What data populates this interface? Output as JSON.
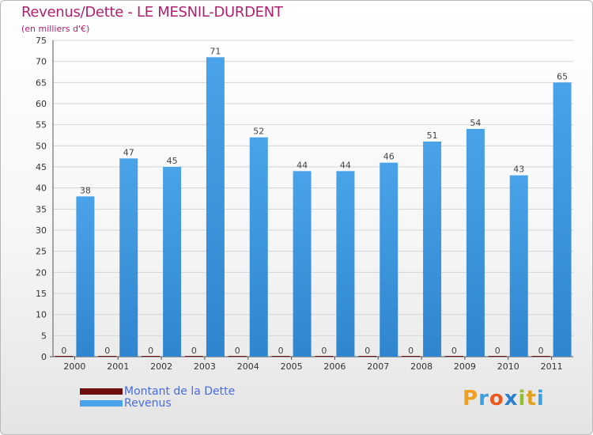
{
  "chart_data": {
    "type": "bar",
    "title": "Revenus/Dette - LE MESNIL-DURDENT",
    "subtitle": "(en milliers d'€)",
    "categories": [
      "2000",
      "2001",
      "2002",
      "2003",
      "2004",
      "2005",
      "2006",
      "2007",
      "2008",
      "2009",
      "2010",
      "2011"
    ],
    "series": [
      {
        "name": "Montant de la Dette",
        "color": "#6b0f0f",
        "values": [
          0,
          0,
          0,
          0,
          0,
          0,
          0,
          0,
          0,
          0,
          0,
          0
        ]
      },
      {
        "name": "Revenus",
        "color": "#4aa3e8",
        "values": [
          38,
          47,
          45,
          71,
          52,
          44,
          44,
          46,
          51,
          54,
          43,
          65
        ]
      }
    ],
    "ylim": [
      0,
      75
    ],
    "yticks": [
      0,
      5,
      10,
      15,
      20,
      25,
      30,
      35,
      40,
      45,
      50,
      55,
      60,
      65,
      70,
      75
    ],
    "grid": true,
    "legend": "bottom-left"
  },
  "legend": {
    "debt_label": "Montant de la Dette",
    "revenue_label": "Revenus"
  },
  "brand": {
    "letters": [
      "P",
      "r",
      "o",
      "x",
      "i",
      "t",
      "i"
    ],
    "colors": [
      "#f0a020",
      "#3aa0e0",
      "#e85a20",
      "#2a7fd0",
      "#90c030",
      "#e0a020",
      "#3aa0e0"
    ]
  }
}
